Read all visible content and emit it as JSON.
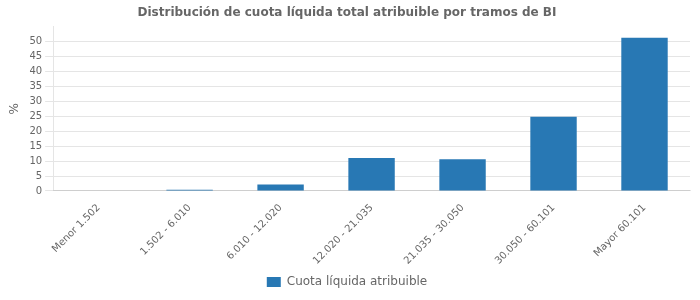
{
  "chart_data": {
    "type": "bar",
    "title": "Distribución de cuota líquida total atribuible por tramos de BI",
    "categories": [
      "Menor 1.502",
      "1.502 - 6.010",
      "6.010 - 12.020",
      "12.020 - 21.035",
      "21.035 - 30.050",
      "30.050 - 60.101",
      "Mayor 60.101"
    ],
    "series": [
      {
        "name": "Cuota líquida atribuible",
        "color": "#2878b4",
        "values": [
          0.2,
          0.4,
          2.2,
          11.0,
          10.6,
          24.8,
          51.2
        ]
      }
    ],
    "ylabel": "%",
    "ylim": [
      0,
      55
    ],
    "yticks": [
      0,
      5,
      10,
      15,
      20,
      25,
      30,
      35,
      40,
      45,
      50
    ],
    "grid": true,
    "legend": "bottom"
  }
}
